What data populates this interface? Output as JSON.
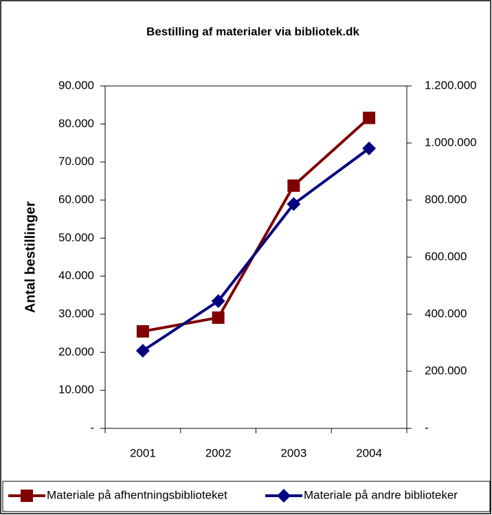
{
  "chart_data": {
    "type": "line",
    "title": "Bestilling af materialer via bibliotek.dk",
    "y_label": "Antal bestillinger",
    "categories": [
      "2001",
      "2002",
      "2003",
      "2004"
    ],
    "series": [
      {
        "name": "Materiale på afhentningsbiblioteket",
        "color": "#800000",
        "marker": "square",
        "axis": "y",
        "values": [
          25500,
          29100,
          63800,
          81600
        ]
      },
      {
        "name": "Materiale på andre biblioteker",
        "color": "#000080",
        "marker": "diamond",
        "axis": "y2",
        "values": [
          272000,
          446000,
          786000,
          981000
        ]
      }
    ],
    "ylim": [
      0,
      90000
    ],
    "yticks": [
      {
        "value": 0,
        "label": "-"
      },
      {
        "value": 10000,
        "label": "10.000"
      },
      {
        "value": 20000,
        "label": "20.000"
      },
      {
        "value": 30000,
        "label": "30.000"
      },
      {
        "value": 40000,
        "label": "40.000"
      },
      {
        "value": 50000,
        "label": "50.000"
      },
      {
        "value": 60000,
        "label": "60.000"
      },
      {
        "value": 70000,
        "label": "70.000"
      },
      {
        "value": 80000,
        "label": "80.000"
      },
      {
        "value": 90000,
        "label": "90.000"
      }
    ],
    "y2lim": [
      0,
      1200000
    ],
    "y2ticks": [
      {
        "value": 0,
        "label": "-"
      },
      {
        "value": 200000,
        "label": "200.000"
      },
      {
        "value": 400000,
        "label": "400.000"
      },
      {
        "value": 600000,
        "label": "600.000"
      },
      {
        "value": 800000,
        "label": "800.000"
      },
      {
        "value": 1000000,
        "label": "1.000.000"
      },
      {
        "value": 1200000,
        "label": "1.200.000"
      }
    ],
    "legend": "bottom"
  }
}
